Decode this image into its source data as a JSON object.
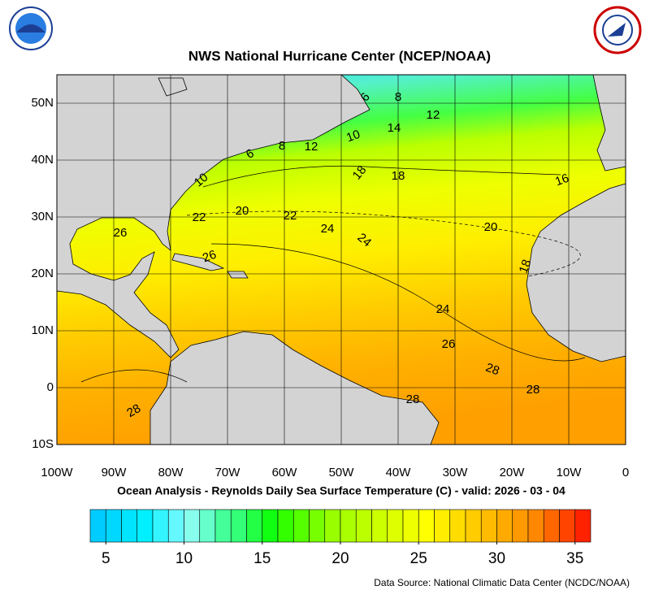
{
  "header": {
    "title": "NWS National Hurricane Center (NCEP/NOAA)"
  },
  "map": {
    "lon_ticks": [
      {
        "value": -100,
        "label": "100W"
      },
      {
        "value": -90,
        "label": "90W"
      },
      {
        "value": -80,
        "label": "80W"
      },
      {
        "value": -70,
        "label": "70W"
      },
      {
        "value": -60,
        "label": "60W"
      },
      {
        "value": -50,
        "label": "50W"
      },
      {
        "value": -40,
        "label": "40W"
      },
      {
        "value": -30,
        "label": "30W"
      },
      {
        "value": -20,
        "label": "20W"
      },
      {
        "value": -10,
        "label": "10W"
      },
      0
    ],
    "lat_ticks": [
      {
        "value": 50,
        "label": "50N"
      },
      {
        "value": 40,
        "label": "40N"
      },
      {
        "value": 30,
        "label": "30N"
      },
      {
        "value": 20,
        "label": "20N"
      },
      {
        "value": 10,
        "label": "10N"
      },
      0,
      {
        "value": -10,
        "label": "10S"
      }
    ],
    "lonlim": [
      -100,
      0
    ],
    "latlim": [
      -10,
      55
    ],
    "grid": true,
    "contour_labels": [
      6,
      8,
      12,
      14,
      10,
      12,
      8,
      6,
      10,
      18,
      18,
      16,
      22,
      20,
      22,
      24,
      24,
      20,
      26,
      26,
      18,
      24,
      26,
      28,
      28,
      28,
      28
    ]
  },
  "caption": "Ocean Analysis - Reynolds Daily Sea Surface Temperature (C) - valid: 2026 - 03 - 04",
  "colorbar": {
    "clim": [
      4,
      36
    ],
    "ticks": [
      5,
      10,
      15,
      20,
      25,
      30,
      35
    ],
    "colors": [
      "#00ccff",
      "#00d8ff",
      "#00e4ff",
      "#00f0ff",
      "#33f5ff",
      "#66f8ff",
      "#88ffee",
      "#66ffcc",
      "#44ff99",
      "#33ff77",
      "#22ff44",
      "#11ff11",
      "#33ff00",
      "#55ff00",
      "#77ff00",
      "#99ff00",
      "#aaff00",
      "#bbff00",
      "#ccff00",
      "#ddff00",
      "#eeff00",
      "#ffff00",
      "#ffee00",
      "#ffdd00",
      "#ffcc00",
      "#ffbb00",
      "#ffaa00",
      "#ff9900",
      "#ff8800",
      "#ff6600",
      "#ff4400",
      "#ff2200"
    ]
  },
  "source": "Data Source: National Climatic Data Center (NCDC/NOAA)"
}
